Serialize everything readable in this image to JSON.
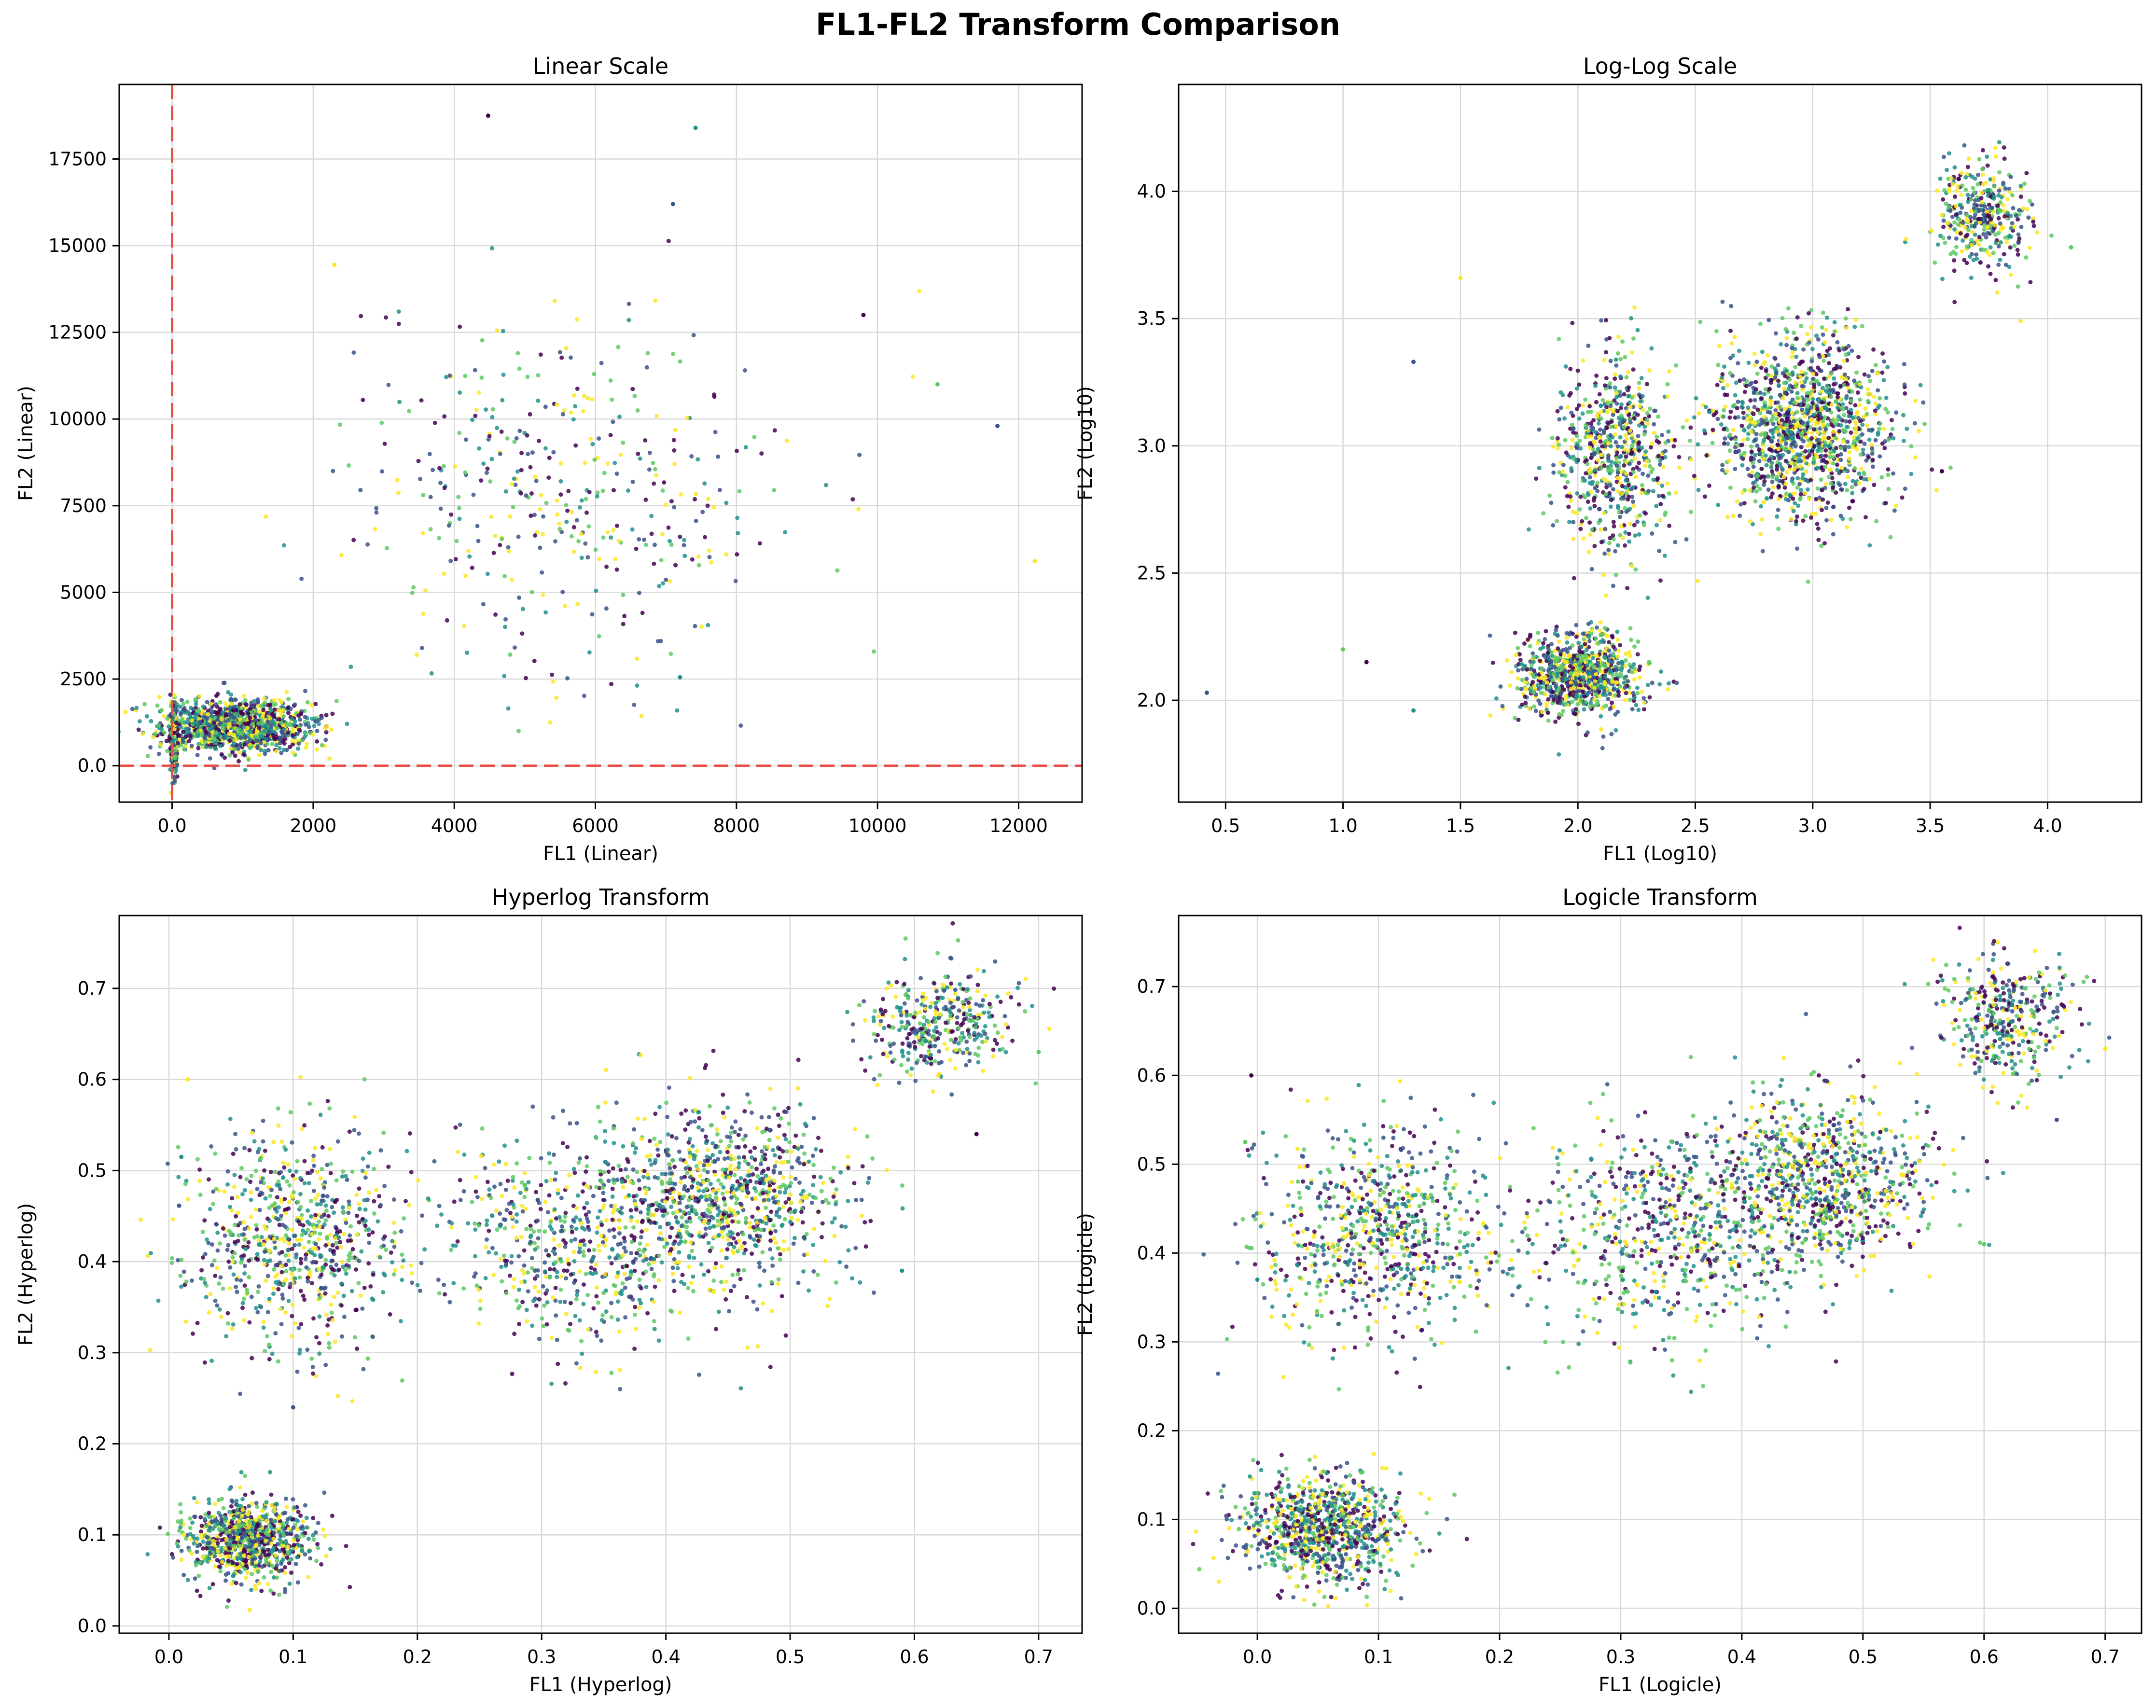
{
  "figure": {
    "title": "FL1-FL2 Transform Comparison"
  },
  "colors": {
    "palette": [
      "#440154",
      "#3b528b",
      "#21918c",
      "#5ec962",
      "#fde725"
    ],
    "gate_line": "#e8504a",
    "grid": "#d9d9d9",
    "axes": "#000000"
  },
  "chart_data": [
    {
      "type": "scatter",
      "title": "Linear Scale",
      "xlabel": "FL1 (Linear)",
      "ylabel": "FL2 (Linear)",
      "xlim": [
        -750,
        12900
      ],
      "ylim": [
        -1050,
        19650
      ],
      "xticks": [
        0,
        2000,
        4000,
        6000,
        8000,
        10000,
        12000
      ],
      "yticks": [
        0,
        2500,
        5000,
        7500,
        10000,
        12500,
        15000,
        17500
      ],
      "grid": true,
      "reference_lines": {
        "x": 0,
        "y": 0
      },
      "clusters": [
        {
          "n": 340,
          "cx": 25,
          "cy": 700,
          "sx": 22,
          "sy": 520
        },
        {
          "n": 1200,
          "cx": 900,
          "cy": 1150,
          "sx": 520,
          "sy": 380
        },
        {
          "n": 420,
          "cx": 5600,
          "cy": 7700,
          "sx": 1600,
          "sy": 2500
        }
      ],
      "highlight_points": [
        {
          "x": 4480,
          "y": 18750
        },
        {
          "x": 7420,
          "y": 18400
        },
        {
          "x": 12230,
          "y": 5900
        },
        {
          "x": 11700,
          "y": 9800
        },
        {
          "x": 10850,
          "y": 11000
        },
        {
          "x": 9800,
          "y": 13000
        },
        {
          "x": 7200,
          "y": 2550
        },
        {
          "x": 2300,
          "y": 14450
        },
        {
          "x": 7100,
          "y": 16200
        }
      ]
    },
    {
      "type": "scatter",
      "title": "Log-Log Scale",
      "xlabel": "FL1 (Log10)",
      "ylabel": "FL2 (Log10)",
      "xlim": [
        0.3,
        4.4
      ],
      "ylim": [
        1.6,
        4.42
      ],
      "xticks": [
        0.5,
        1.0,
        1.5,
        2.0,
        2.5,
        3.0,
        3.5,
        4.0
      ],
      "yticks": [
        2.0,
        2.5,
        3.0,
        3.5,
        4.0
      ],
      "grid": true,
      "clusters": [
        {
          "n": 900,
          "cx": 2.0,
          "cy": 2.1,
          "sx": 0.13,
          "sy": 0.08
        },
        {
          "n": 650,
          "cx": 2.15,
          "cy": 2.98,
          "sx": 0.12,
          "sy": 0.2
        },
        {
          "n": 1300,
          "cx": 2.95,
          "cy": 3.08,
          "sx": 0.2,
          "sy": 0.18
        },
        {
          "n": 380,
          "cx": 3.72,
          "cy": 3.9,
          "sx": 0.1,
          "sy": 0.11
        }
      ],
      "highlight_points": [
        {
          "x": 0.42,
          "y": 2.03
        },
        {
          "x": 1.0,
          "y": 2.2
        },
        {
          "x": 1.1,
          "y": 2.15
        },
        {
          "x": 1.3,
          "y": 1.96
        },
        {
          "x": 1.5,
          "y": 3.66
        },
        {
          "x": 1.3,
          "y": 3.33
        },
        {
          "x": 4.1,
          "y": 3.78
        },
        {
          "x": 3.55,
          "y": 2.9
        }
      ]
    },
    {
      "type": "scatter",
      "title": "Hyperlog Transform",
      "xlabel": "FL1 (Hyperlog)",
      "ylabel": "FL2 (Hyperlog)",
      "xlim": [
        -0.04,
        0.735
      ],
      "ylim": [
        -0.008,
        0.78
      ],
      "xticks": [
        0.0,
        0.1,
        0.2,
        0.3,
        0.4,
        0.5,
        0.6,
        0.7
      ],
      "yticks": [
        0.0,
        0.1,
        0.2,
        0.3,
        0.4,
        0.5,
        0.6,
        0.7
      ],
      "grid": true,
      "clusters": [
        {
          "n": 900,
          "cx": 0.065,
          "cy": 0.095,
          "sx": 0.025,
          "sy": 0.022
        },
        {
          "n": 750,
          "cx": 0.1,
          "cy": 0.42,
          "sx": 0.045,
          "sy": 0.06
        },
        {
          "n": 600,
          "cx": 0.33,
          "cy": 0.42,
          "sx": 0.06,
          "sy": 0.06
        },
        {
          "n": 900,
          "cx": 0.45,
          "cy": 0.47,
          "sx": 0.05,
          "sy": 0.05
        },
        {
          "n": 380,
          "cx": 0.62,
          "cy": 0.66,
          "sx": 0.03,
          "sy": 0.03
        }
      ],
      "highlight_points": [
        {
          "x": 0.01,
          "y": 0.515
        },
        {
          "x": 0.015,
          "y": 0.6
        },
        {
          "x": 0.1,
          "y": 0.24
        },
        {
          "x": 0.7,
          "y": 0.63
        },
        {
          "x": 0.65,
          "y": 0.54
        },
        {
          "x": 0.59,
          "y": 0.39
        }
      ]
    },
    {
      "type": "scatter",
      "title": "Logicle Transform",
      "xlabel": "FL1 (Logicle)",
      "ylabel": "FL2 (Logicle)",
      "xlim": [
        -0.065,
        0.73
      ],
      "ylim": [
        -0.028,
        0.78
      ],
      "xticks": [
        0.0,
        0.1,
        0.2,
        0.3,
        0.4,
        0.5,
        0.6,
        0.7
      ],
      "yticks": [
        0.0,
        0.1,
        0.2,
        0.3,
        0.4,
        0.5,
        0.6,
        0.7
      ],
      "grid": true,
      "clusters": [
        {
          "n": 900,
          "cx": 0.055,
          "cy": 0.09,
          "sx": 0.035,
          "sy": 0.03
        },
        {
          "n": 750,
          "cx": 0.1,
          "cy": 0.42,
          "sx": 0.05,
          "sy": 0.06
        },
        {
          "n": 600,
          "cx": 0.33,
          "cy": 0.42,
          "sx": 0.06,
          "sy": 0.06
        },
        {
          "n": 900,
          "cx": 0.46,
          "cy": 0.48,
          "sx": 0.05,
          "sy": 0.05
        },
        {
          "n": 380,
          "cx": 0.62,
          "cy": 0.665,
          "sx": 0.03,
          "sy": 0.035
        }
      ],
      "highlight_points": [
        {
          "x": -0.01,
          "y": 0.525
        },
        {
          "x": -0.005,
          "y": 0.6
        },
        {
          "x": 0.0,
          "y": 0.37
        },
        {
          "x": 0.7,
          "y": 0.63
        },
        {
          "x": 0.66,
          "y": 0.55
        },
        {
          "x": 0.6,
          "y": 0.41
        }
      ]
    }
  ]
}
